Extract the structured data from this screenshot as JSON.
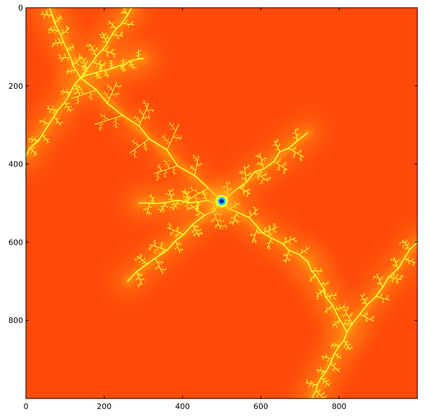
{
  "chart_data": {
    "type": "heatmap",
    "title": "",
    "xlabel": "",
    "ylabel": "",
    "xlim": [
      0,
      1000
    ],
    "ylim": [
      1000,
      0
    ],
    "x_ticks": [
      0,
      200,
      400,
      600,
      800
    ],
    "y_ticks": [
      0,
      200,
      400,
      600,
      800
    ],
    "y_axis_inverted": true,
    "grid": false,
    "legend": "none",
    "colormap": "jet",
    "colors": {
      "background_orange": "#ff4a0a",
      "glow_orange": "#ff9a10",
      "filament_yellow": "#ffff30",
      "center_cyan": "#20d0ff",
      "center_dark": "#0a1fa0"
    },
    "features": [
      {
        "kind": "mini-brot-center",
        "x": 500,
        "y": 495
      },
      {
        "kind": "dendrite-arm",
        "from": [
          500,
          495
        ],
        "to": [
          140,
          180
        ]
      },
      {
        "kind": "dendrite-arm",
        "from": [
          500,
          495
        ],
        "to": [
          720,
          320
        ]
      },
      {
        "kind": "dendrite-arm",
        "from": [
          500,
          495
        ],
        "to": [
          290,
          500
        ]
      },
      {
        "kind": "dendrite-arm",
        "from": [
          500,
          495
        ],
        "to": [
          260,
          700
        ]
      },
      {
        "kind": "dendrite-arm",
        "from": [
          500,
          495
        ],
        "to": [
          720,
          650
        ]
      },
      {
        "kind": "dendrite-arm",
        "from": [
          720,
          650
        ],
        "to": [
          820,
          830
        ]
      },
      {
        "kind": "dendrite-arm",
        "from": [
          820,
          830
        ],
        "to": [
          1000,
          600
        ]
      },
      {
        "kind": "dendrite-arm",
        "from": [
          820,
          830
        ],
        "to": [
          730,
          1000
        ]
      },
      {
        "kind": "dendrite-arm",
        "from": [
          140,
          180
        ],
        "to": [
          0,
          380
        ]
      },
      {
        "kind": "dendrite-arm",
        "from": [
          140,
          180
        ],
        "to": [
          60,
          0
        ]
      },
      {
        "kind": "dendrite-arm",
        "from": [
          140,
          180
        ],
        "to": [
          270,
          0
        ]
      },
      {
        "kind": "dendrite-arm",
        "from": [
          140,
          180
        ],
        "to": [
          300,
          130
        ]
      }
    ]
  }
}
